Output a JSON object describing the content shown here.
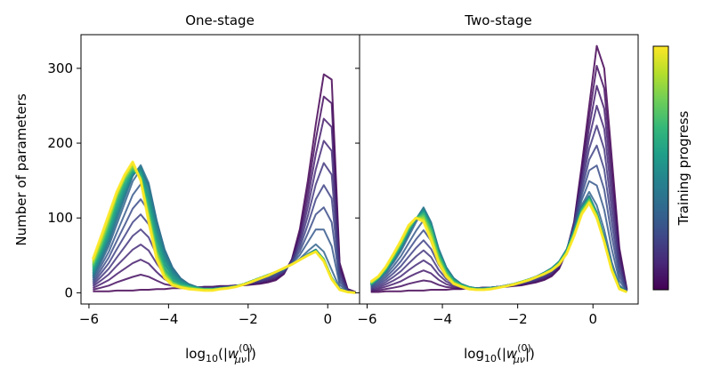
{
  "figure": {
    "ylabel": "Number of parameters",
    "colorbar_label": "Training progress",
    "colormap": [
      "#440154",
      "#482878",
      "#3e4989",
      "#31688e",
      "#26828e",
      "#1f9e89",
      "#35b779",
      "#6ece58",
      "#b5de2b",
      "#fde725"
    ]
  },
  "chart_data": [
    {
      "type": "line",
      "title": "One-stage",
      "xlabel": "log10(|w(0)μν|)",
      "xlabel_parts": {
        "pre": "log",
        "sub": "10",
        "open": "(|",
        "w": "w",
        "sup": "(0)",
        "wsub": "μν",
        "close": "|)"
      },
      "xlim": [
        -6.2,
        0.8
      ],
      "ylim": [
        -15,
        345
      ],
      "xticks": [
        -6,
        -4,
        -2,
        0
      ],
      "xtick_labels": [
        "−6",
        "−4",
        "−2",
        "0"
      ],
      "yticks": [
        0,
        100,
        200,
        300
      ],
      "ytick_labels": [
        "0",
        "100",
        "200",
        "300"
      ],
      "grid": false,
      "x": [
        -5.9,
        -5.7,
        -5.5,
        -5.3,
        -5.1,
        -4.9,
        -4.7,
        -4.5,
        -4.3,
        -4.1,
        -3.9,
        -3.7,
        -3.5,
        -3.3,
        -3.1,
        -2.9,
        -2.7,
        -2.5,
        -2.3,
        -2.1,
        -1.9,
        -1.7,
        -1.5,
        -1.3,
        -1.1,
        -0.9,
        -0.7,
        -0.5,
        -0.3,
        -0.1,
        0.1,
        0.3,
        0.5,
        0.7
      ],
      "n_curves": 26,
      "series": [
        {
          "values": [
            2,
            2,
            2,
            3,
            3,
            3,
            4,
            4,
            5,
            5,
            6,
            6,
            7,
            7,
            8,
            8,
            9,
            9,
            10,
            10,
            11,
            12,
            14,
            17,
            25,
            45,
            85,
            150,
            225,
            292,
            285,
            40,
            5,
            1
          ]
        },
        {
          "values": [
            20,
            42,
            65,
            95,
            125,
            155,
            172,
            150,
            100,
            60,
            35,
            20,
            12,
            8,
            5,
            5,
            6,
            7,
            9,
            12,
            16,
            20,
            24,
            28,
            32,
            38,
            44,
            52,
            58,
            45,
            20,
            5,
            1,
            0
          ]
        },
        {
          "values": [
            35,
            60,
            90,
            125,
            150,
            165,
            155,
            110,
            60,
            30,
            15,
            10,
            8,
            6,
            5,
            5,
            6,
            7,
            9,
            12,
            16,
            20,
            24,
            28,
            32,
            38,
            44,
            50,
            56,
            45,
            20,
            5,
            1,
            0
          ]
        },
        {
          "values": [
            45,
            75,
            105,
            135,
            158,
            175,
            150,
            95,
            45,
            20,
            10,
            7,
            5,
            4,
            3,
            3,
            5,
            6,
            8,
            11,
            15,
            19,
            23,
            28,
            33,
            38,
            44,
            50,
            55,
            42,
            18,
            4,
            1,
            0
          ]
        }
      ]
    },
    {
      "type": "line",
      "title": "Two-stage",
      "xlabel": "log10(|w(0)μν|)",
      "xlabel_parts": {
        "pre": "log",
        "sub": "10",
        "open": "(|",
        "w": "w",
        "sup": "(0)",
        "wsub": "μν",
        "close": "|)"
      },
      "xlim": [
        -6.2,
        1.2
      ],
      "ylim": [
        -15,
        345
      ],
      "xticks": [
        -6,
        -4,
        -2,
        0
      ],
      "xtick_labels": [
        "−6",
        "−4",
        "−2",
        "0"
      ],
      "yticks": [
        0,
        100,
        200,
        300
      ],
      "grid": false,
      "x": [
        -5.9,
        -5.7,
        -5.5,
        -5.3,
        -5.1,
        -4.9,
        -4.7,
        -4.5,
        -4.3,
        -4.1,
        -3.9,
        -3.7,
        -3.5,
        -3.3,
        -3.1,
        -2.9,
        -2.7,
        -2.5,
        -2.3,
        -2.1,
        -1.9,
        -1.7,
        -1.5,
        -1.3,
        -1.1,
        -0.9,
        -0.7,
        -0.5,
        -0.3,
        -0.1,
        0.1,
        0.3,
        0.5,
        0.7,
        0.9
      ],
      "n_curves": 26,
      "series": [
        {
          "values": [
            1,
            1,
            2,
            2,
            2,
            3,
            3,
            3,
            4,
            4,
            4,
            5,
            5,
            6,
            6,
            7,
            7,
            8,
            8,
            9,
            10,
            12,
            14,
            17,
            22,
            32,
            55,
            95,
            170,
            250,
            330,
            300,
            180,
            60,
            5
          ]
        },
        {
          "values": [
            10,
            18,
            28,
            42,
            58,
            78,
            98,
            115,
            95,
            60,
            35,
            20,
            12,
            8,
            6,
            6,
            7,
            8,
            10,
            12,
            15,
            18,
            22,
            27,
            33,
            42,
            58,
            85,
            115,
            130,
            108,
            75,
            35,
            8,
            1
          ]
        },
        {
          "values": [
            12,
            20,
            32,
            48,
            65,
            85,
            100,
            105,
            85,
            50,
            28,
            15,
            10,
            7,
            5,
            5,
            6,
            7,
            9,
            12,
            15,
            18,
            21,
            26,
            31,
            40,
            55,
            80,
            110,
            125,
            105,
            70,
            32,
            6,
            1
          ]
        },
        {
          "values": [
            15,
            22,
            35,
            52,
            70,
            90,
            100,
            95,
            70,
            40,
            22,
            12,
            8,
            5,
            4,
            4,
            5,
            7,
            9,
            11,
            14,
            17,
            21,
            25,
            30,
            38,
            52,
            76,
            105,
            120,
            100,
            68,
            30,
            5,
            1
          ]
        }
      ]
    }
  ]
}
